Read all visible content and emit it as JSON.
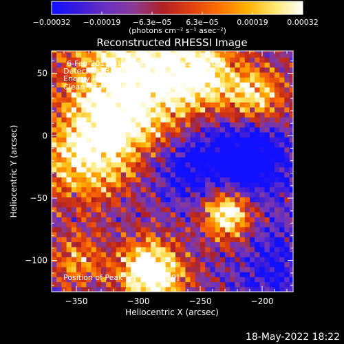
{
  "chart_data": {
    "type": "heatmap",
    "title": "Reconstructed RHESSI Image",
    "xlabel": "Heliocentric X (arcsec)",
    "ylabel": "Heliocentric Y (arcsec)",
    "xlim": [
      -370,
      -175
    ],
    "ylim": [
      -125,
      68
    ],
    "x_ticks": [
      -350,
      -300,
      -250,
      -200
    ],
    "x_tick_labels": [
      "−350",
      "−300",
      "−250",
      "−200"
    ],
    "y_ticks": [
      50,
      0,
      -50,
      -100
    ],
    "y_tick_labels": [
      "50",
      "0",
      "−50",
      "−100"
    ],
    "colorbar": {
      "range": [
        -0.00032,
        0.00032
      ],
      "tick_labels": [
        "−0.00032",
        "−0.00019",
        "−6.3e−05",
        "6.3e−05",
        "0.00019",
        "0.00032"
      ],
      "unit_label": "(photons cm⁻² s⁻¹ asec⁻²)",
      "colors": [
        "#1010ff",
        "#3a1cd8",
        "#6b32c0",
        "#8a3a90",
        "#b02020",
        "#e04010",
        "#ff7000",
        "#ffb000",
        "#ffe870",
        "#ffffff"
      ]
    },
    "annotations": [
      "6-Feb-2015 01:17:56.000 to 01:23:56.000",
      "Detectors: 3F 5F 6F 7F 8F 9F, Att 0",
      "Energy Range: 25.0 - 50.0 keV",
      "Clean    Total Counts: 8.16E+03",
      "Position of Peak = [-292, -120]"
    ],
    "footer_timestamp": "18-May-2022 18:22",
    "intensity_sources": [
      {
        "x": -300,
        "y": 55,
        "sigma": 40,
        "amp": 0.75
      },
      {
        "x": -345,
        "y": -20,
        "sigma": 25,
        "amp": 0.55
      },
      {
        "x": -290,
        "y": -110,
        "sigma": 18,
        "amp": 1.0
      },
      {
        "x": -228,
        "y": -62,
        "sigma": 14,
        "amp": 0.85
      },
      {
        "x": -205,
        "y": 30,
        "sigma": 18,
        "amp": 0.65
      },
      {
        "x": -320,
        "y": 10,
        "sigma": 25,
        "amp": 0.45
      },
      {
        "x": -250,
        "y": 50,
        "sigma": 20,
        "amp": 0.55
      },
      {
        "x": -350,
        "y": -100,
        "sigma": 15,
        "amp": 0.45
      },
      {
        "x": -215,
        "y": -15,
        "sigma": 25,
        "amp": -0.6
      },
      {
        "x": -265,
        "y": -25,
        "sigma": 18,
        "amp": -0.35
      },
      {
        "x": -190,
        "y": -105,
        "sigma": 20,
        "amp": -0.3
      }
    ]
  }
}
